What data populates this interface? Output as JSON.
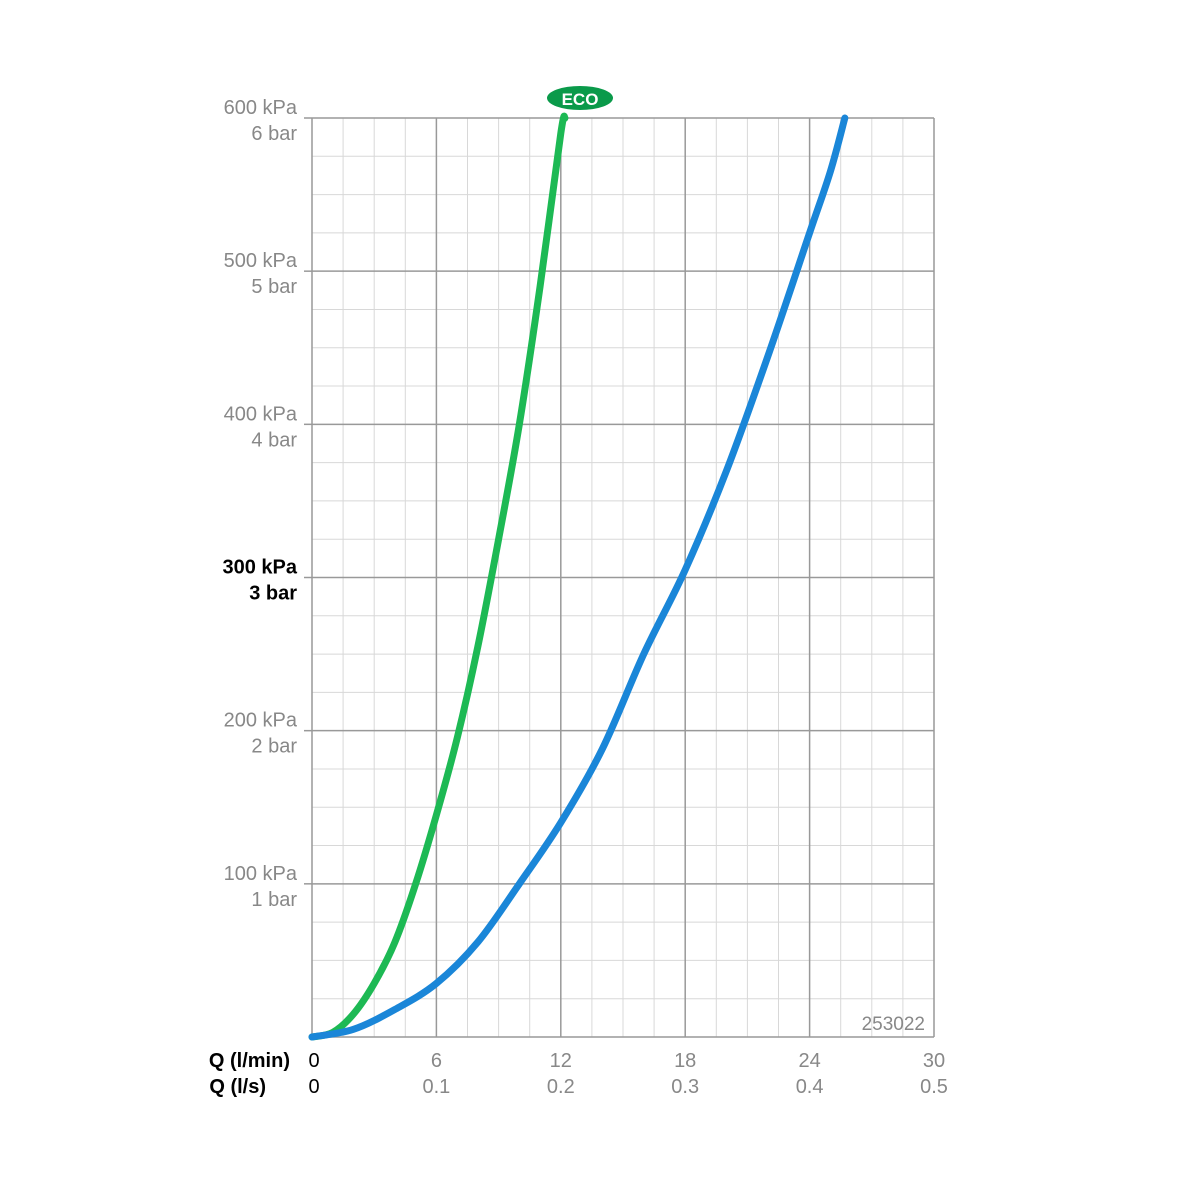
{
  "eco_badge": "ECO",
  "code": "253022",
  "colors": {
    "eco_curve": "#1db954",
    "standard_curve": "#1a86d8",
    "eco_badge_bg": "#0a9a4a",
    "eco_badge_text": "#ffffff",
    "grid_major": "#999999",
    "grid_minor": "#d8d8d8",
    "tick_text": "#888888",
    "axis_label_text": "#000000"
  },
  "chart_data": {
    "type": "line",
    "title": "",
    "x_axis": {
      "label_primary": "Q (l/min)",
      "label_secondary": "Q (l/s)",
      "range": [
        0,
        30
      ],
      "ticks_primary": [
        "0",
        "6",
        "12",
        "18",
        "24",
        "30"
      ],
      "ticks_secondary": [
        "0",
        "0.1",
        "0.2",
        "0.3",
        "0.4",
        "0.5"
      ]
    },
    "y_axis": {
      "range": [
        0,
        600
      ],
      "unit": "kPa",
      "ticks": [
        {
          "value": 100,
          "kpa": "100 kPa",
          "bar": "1 bar",
          "bold": false
        },
        {
          "value": 200,
          "kpa": "200 kPa",
          "bar": "2 bar",
          "bold": false
        },
        {
          "value": 300,
          "kpa": "300 kPa",
          "bar": "3 bar",
          "bold": true
        },
        {
          "value": 400,
          "kpa": "400 kPa",
          "bar": "4 bar",
          "bold": false
        },
        {
          "value": 500,
          "kpa": "500 kPa",
          "bar": "5 bar",
          "bold": false
        },
        {
          "value": 600,
          "kpa": "600 kPa",
          "bar": "6 bar",
          "bold": false
        }
      ]
    },
    "grid": true,
    "series": [
      {
        "key": "eco",
        "points": [
          [
            0,
            0
          ],
          [
            1,
            3
          ],
          [
            2,
            15
          ],
          [
            3,
            35
          ],
          [
            4,
            62
          ],
          [
            5,
            100
          ],
          [
            6,
            145
          ],
          [
            7,
            195
          ],
          [
            8,
            255
          ],
          [
            9,
            325
          ],
          [
            10,
            400
          ],
          [
            11,
            490
          ],
          [
            12,
            590
          ],
          [
            12.2,
            600
          ]
        ]
      },
      {
        "key": "standard",
        "points": [
          [
            0,
            0
          ],
          [
            2,
            5
          ],
          [
            4,
            18
          ],
          [
            6,
            35
          ],
          [
            8,
            62
          ],
          [
            10,
            100
          ],
          [
            12,
            140
          ],
          [
            14,
            188
          ],
          [
            16,
            250
          ],
          [
            18,
            305
          ],
          [
            20,
            370
          ],
          [
            22,
            445
          ],
          [
            24,
            525
          ],
          [
            25,
            565
          ],
          [
            25.7,
            600
          ]
        ]
      }
    ]
  }
}
